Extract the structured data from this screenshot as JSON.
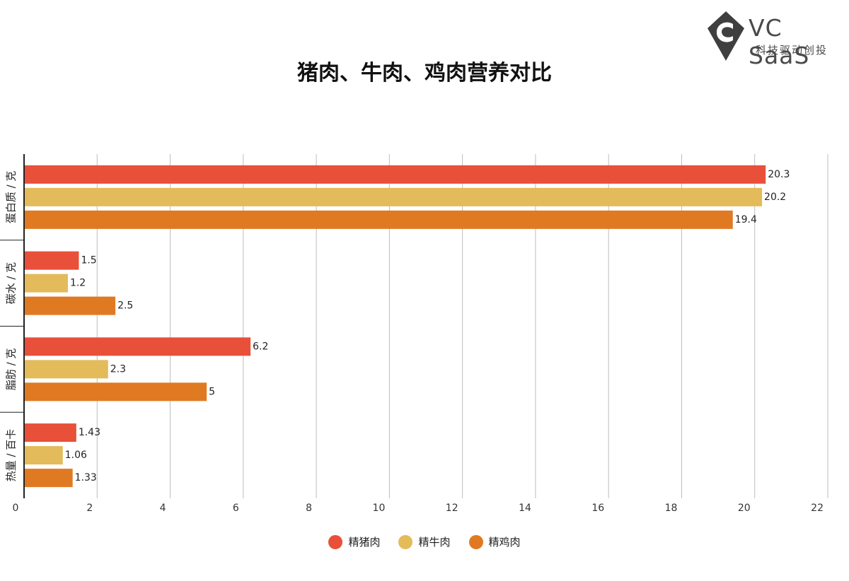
{
  "logo": {
    "brand": "VC SaaS",
    "tagline": "科技驱动创投",
    "icon": "vc-saas-logo-icon",
    "color": "#3f3f3f"
  },
  "chart_data": {
    "type": "bar",
    "orientation": "horizontal",
    "title": "猪肉、牛肉、鸡肉营养对比",
    "xlabel": "",
    "ylabel": "",
    "xlim": [
      0,
      22
    ],
    "xticks": [
      0,
      2,
      4,
      6,
      8,
      10,
      12,
      14,
      16,
      18,
      20,
      22
    ],
    "grid": true,
    "legend_position": "bottom",
    "categories": [
      "蛋白质 / 克",
      "碳水 / 克",
      "脂肪 / 克",
      "热量 / 百卡"
    ],
    "series": [
      {
        "name": "精猪肉",
        "color": "#e8503a",
        "values": [
          20.3,
          1.5,
          6.2,
          1.43
        ]
      },
      {
        "name": "精牛肉",
        "color": "#e4bb5a",
        "values": [
          20.2,
          1.2,
          2.3,
          1.06
        ]
      },
      {
        "name": "精鸡肉",
        "color": "#e07a22",
        "values": [
          19.4,
          2.5,
          5,
          1.33
        ]
      }
    ]
  }
}
